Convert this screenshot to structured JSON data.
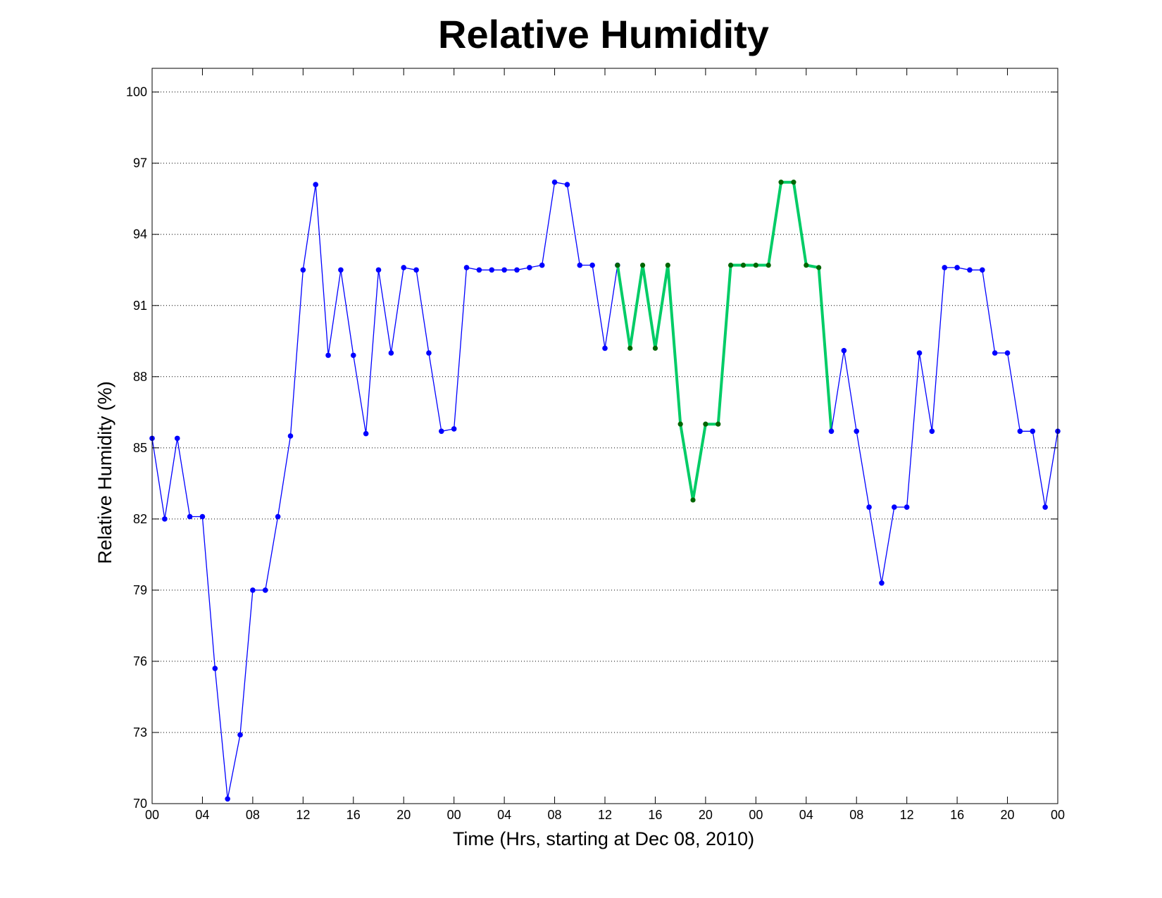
{
  "chart_data": {
    "type": "line",
    "title": "Relative Humidity",
    "xlabel": "Time (Hrs, starting at Dec 08, 2010)",
    "ylabel": "Relative Humidity (%)",
    "xlim": [
      0,
      72
    ],
    "ylim": [
      70,
      101
    ],
    "yticks": [
      70,
      73,
      76,
      79,
      82,
      85,
      88,
      91,
      94,
      97,
      100
    ],
    "xticks": [
      0,
      4,
      8,
      12,
      16,
      20,
      24,
      28,
      32,
      36,
      40,
      44,
      48,
      52,
      56,
      60,
      64,
      68,
      72
    ],
    "xtick_labels": [
      "00",
      "04",
      "08",
      "12",
      "16",
      "20",
      "00",
      "04",
      "08",
      "12",
      "16",
      "20",
      "00",
      "04",
      "08",
      "12",
      "16",
      "20",
      "00"
    ],
    "grid": "y-dotted",
    "legend": "none",
    "series": [
      {
        "color": "#0000ff",
        "style": "thin-line-dots",
        "x": [
          0,
          1,
          2,
          3,
          4,
          5,
          6,
          7,
          8,
          9,
          10,
          11,
          12,
          13,
          14,
          15,
          16,
          17,
          18,
          19,
          20,
          21,
          22,
          23,
          24,
          25,
          26,
          27,
          28,
          29,
          30,
          31,
          32,
          33,
          34,
          35,
          36,
          37
        ],
        "y": [
          85.4,
          82.0,
          85.4,
          82.1,
          82.1,
          75.7,
          70.2,
          72.9,
          79.0,
          79.0,
          82.1,
          85.5,
          92.5,
          96.1,
          88.9,
          92.5,
          88.9,
          85.6,
          92.5,
          89.0,
          92.6,
          92.5,
          89.0,
          85.7,
          85.8,
          92.6,
          92.5,
          92.5,
          92.5,
          92.5,
          92.6,
          92.7,
          96.2,
          96.1,
          92.7,
          92.7,
          89.2,
          92.7
        ]
      },
      {
        "color": "#00cc66",
        "marker_color": "#006600",
        "style": "thick-line-dots",
        "x": [
          37,
          38,
          39,
          40,
          41,
          42,
          43,
          44,
          45,
          46,
          47,
          48,
          49,
          50,
          51,
          52,
          53,
          54
        ],
        "y": [
          92.7,
          89.2,
          92.7,
          89.2,
          92.7,
          86.0,
          82.8,
          86.0,
          86.0,
          92.7,
          92.7,
          92.7,
          92.7,
          96.2,
          96.2,
          92.7,
          92.6,
          85.7
        ]
      },
      {
        "color": "#0000ff",
        "style": "thin-line-dots",
        "x": [
          54,
          55,
          56,
          57,
          58,
          59,
          60,
          61,
          62,
          63,
          64,
          65,
          66,
          67,
          68,
          69,
          70,
          71,
          72
        ],
        "y": [
          85.7,
          89.1,
          85.7,
          82.5,
          79.3,
          82.5,
          82.5,
          89.0,
          85.7,
          92.6,
          92.6,
          92.5,
          92.5,
          89.0,
          89.0,
          85.7,
          85.7,
          82.5,
          85.7
        ]
      }
    ]
  }
}
